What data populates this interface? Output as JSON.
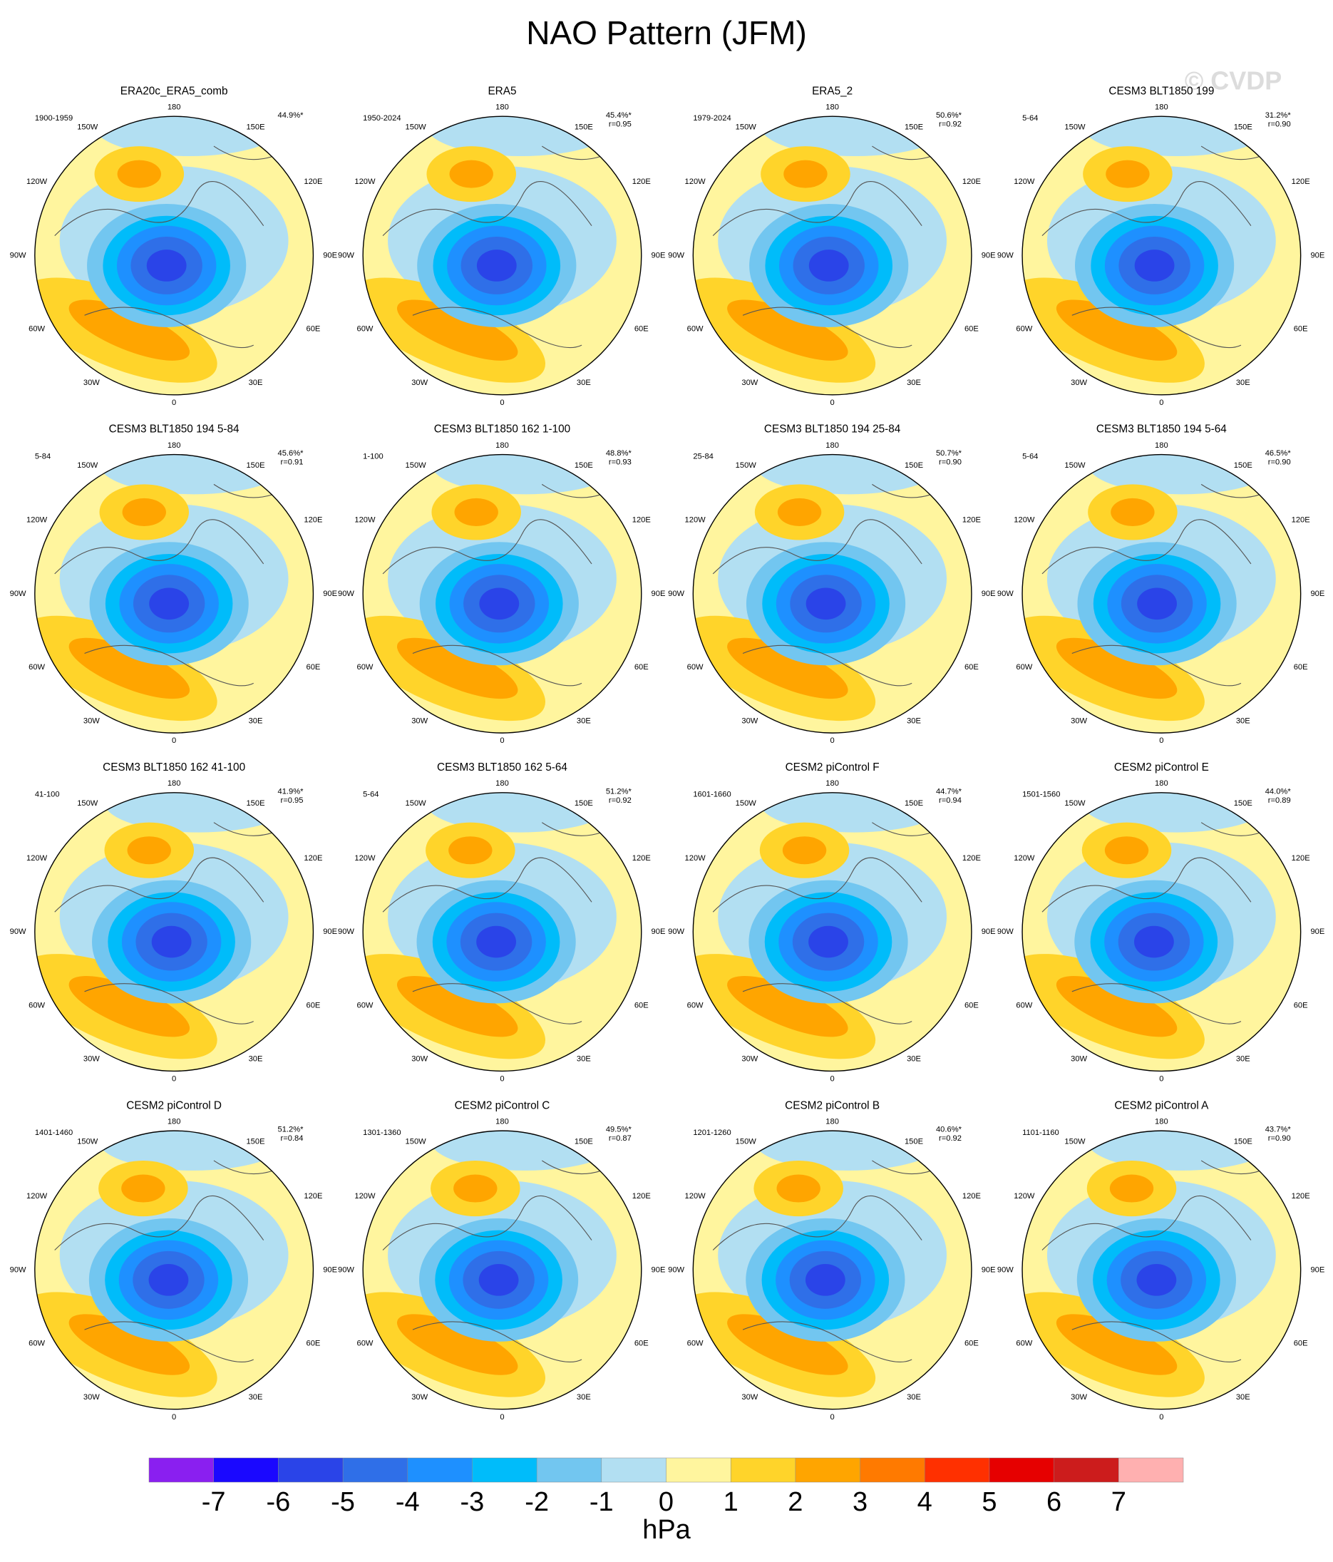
{
  "header": {
    "title": "NAO Pattern (JFM)",
    "watermark": "© CVDP"
  },
  "lon_labels": [
    "180",
    "150W",
    "150E",
    "120W",
    "120E",
    "90W",
    "90E",
    "60W",
    "60E",
    "30W",
    "30E",
    "0"
  ],
  "panels": [
    {
      "title": "ERA20c_ERA5_comb",
      "period": "1900-1959",
      "pct": "44.9%*"
    },
    {
      "title": "ERA5",
      "period": "1950-2024",
      "pct": "45.4%*",
      "r": "r=0.95"
    },
    {
      "title": "ERA5_2",
      "period": "1979-2024",
      "pct": "50.6%*",
      "r": "r=0.92"
    },
    {
      "title": "CESM3 BLT1850 199",
      "period": "5-64",
      "pct": "31.2%*",
      "r": "r=0.90"
    },
    {
      "title": "CESM3 BLT1850 194 5-84",
      "period": "5-84",
      "pct": "45.6%*",
      "r": "r=0.91"
    },
    {
      "title": "CESM3 BLT1850 162 1-100",
      "period": "1-100",
      "pct": "48.8%*",
      "r": "r=0.93"
    },
    {
      "title": "CESM3 BLT1850 194 25-84",
      "period": "25-84",
      "pct": "50.7%*",
      "r": "r=0.90"
    },
    {
      "title": "CESM3 BLT1850 194 5-64",
      "period": "5-64",
      "pct": "46.5%*",
      "r": "r=0.90"
    },
    {
      "title": "CESM3 BLT1850 162 41-100",
      "period": "41-100",
      "pct": "41.9%*",
      "r": "r=0.95"
    },
    {
      "title": "CESM3 BLT1850 162 5-64",
      "period": "5-64",
      "pct": "51.2%*",
      "r": "r=0.92"
    },
    {
      "title": "CESM2 piControl F",
      "period": "1601-1660",
      "pct": "44.7%*",
      "r": "r=0.94"
    },
    {
      "title": "CESM2 piControl E",
      "period": "1501-1560",
      "pct": "44.0%*",
      "r": "r=0.89"
    },
    {
      "title": "CESM2 piControl D",
      "period": "1401-1460",
      "pct": "51.2%*",
      "r": "r=0.84"
    },
    {
      "title": "CESM2 piControl C",
      "period": "1301-1360",
      "pct": "49.5%*",
      "r": "r=0.87"
    },
    {
      "title": "CESM2 piControl B",
      "period": "1201-1260",
      "pct": "40.6%*",
      "r": "r=0.92"
    },
    {
      "title": "CESM2 piControl A",
      "period": "1101-1160",
      "pct": "43.7%*",
      "r": "r=0.90"
    }
  ],
  "colorbar": {
    "colors": [
      "#8a1ff0",
      "#1a08ff",
      "#2a44e8",
      "#2f6fe8",
      "#1e90ff",
      "#00bcfa",
      "#72c6f0",
      "#b2dff2",
      "#fff59e",
      "#ffd42a",
      "#ffa500",
      "#ff7a00",
      "#ff3000",
      "#e60000",
      "#cc1c1c",
      "#ffb0b0"
    ],
    "ticks": [
      -7,
      -6,
      -5,
      -4,
      -3,
      -2,
      -1,
      0,
      1,
      2,
      3,
      4,
      5,
      6,
      7
    ],
    "label": "hPa"
  }
}
